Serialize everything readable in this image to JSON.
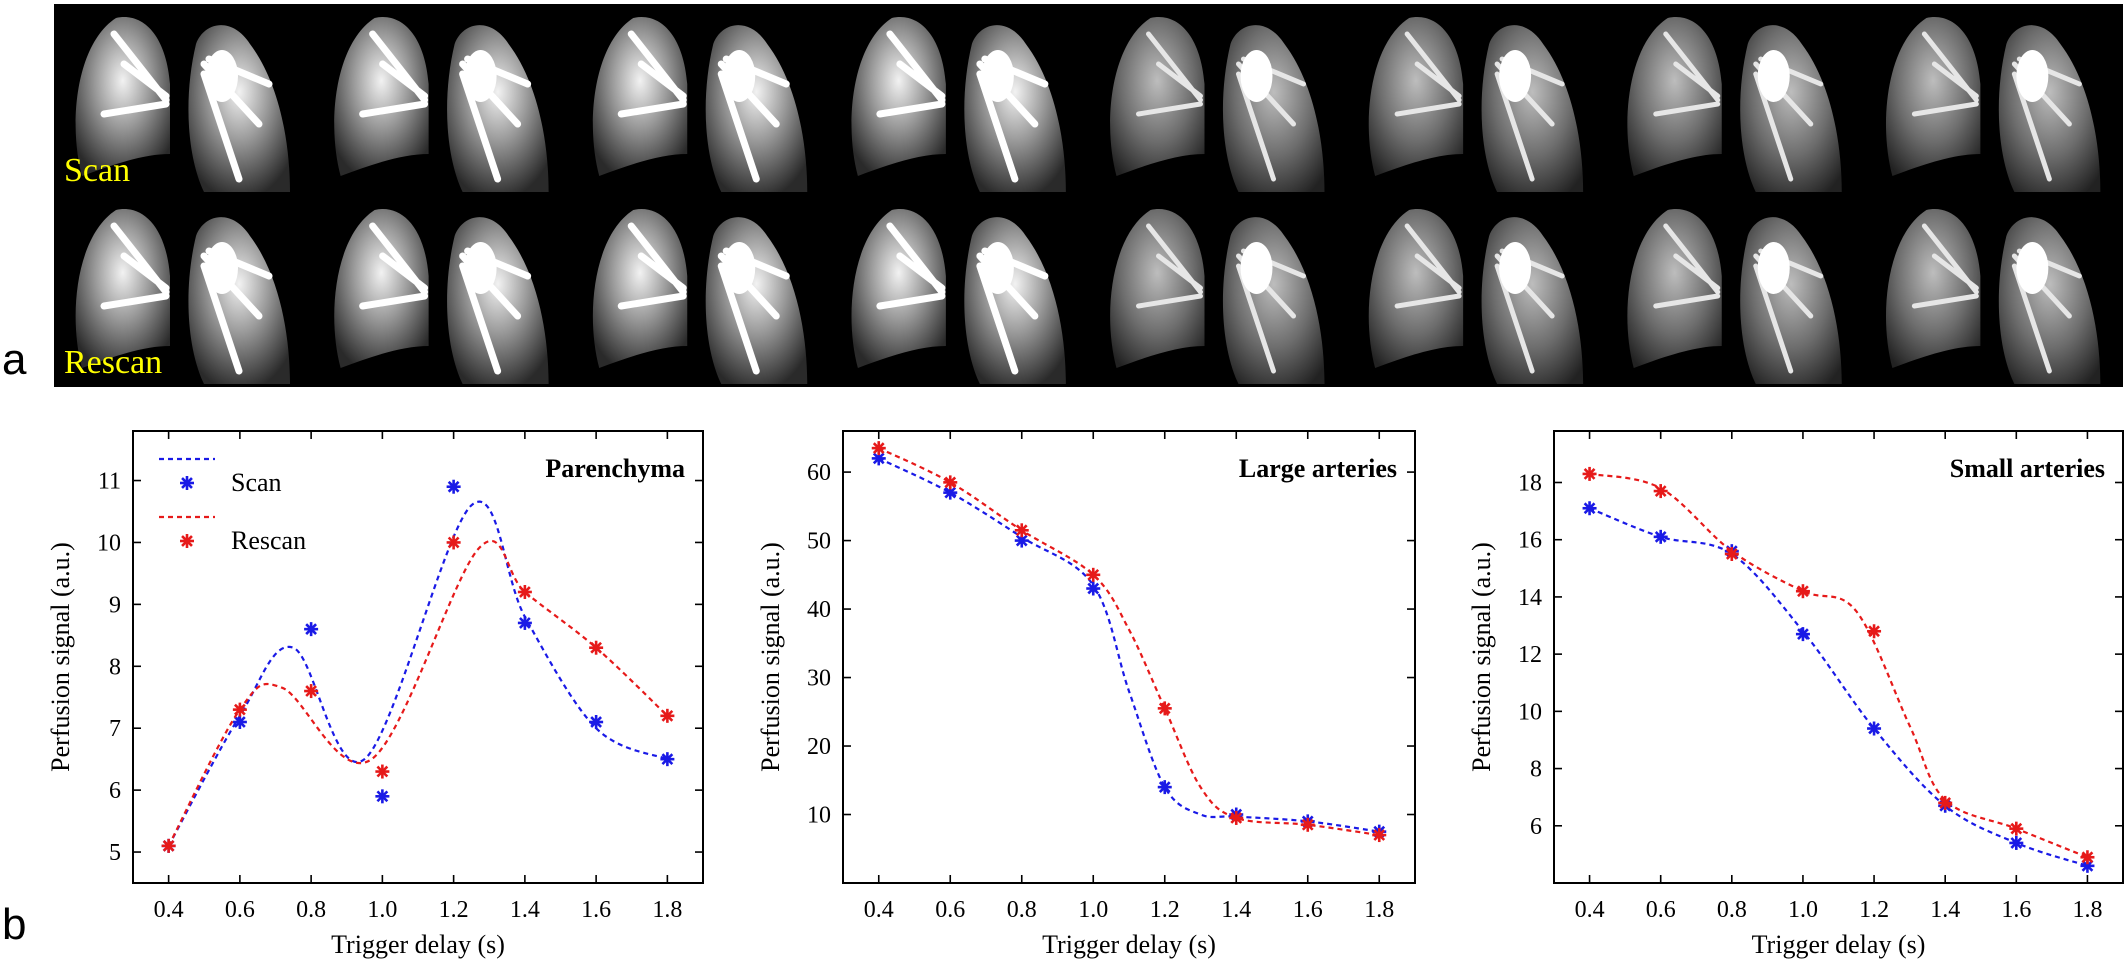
{
  "panel_labels": {
    "a": "a",
    "b": "b"
  },
  "mri": {
    "row_labels": [
      "Scan",
      "Rescan"
    ],
    "columns": 8,
    "label_color": "#ffff00"
  },
  "colors": {
    "scan": "#1a1ae6",
    "rescan": "#e61a1a"
  },
  "chart_data": [
    {
      "type": "line",
      "title": "Parenchyma",
      "xlabel": "Trigger delay (s)",
      "ylabel": "Perfusion signal (a.u.)",
      "xlim": [
        0.3,
        1.9
      ],
      "ylim": [
        4.5,
        11.8
      ],
      "xticks": [
        0.4,
        0.6,
        0.8,
        1.0,
        1.2,
        1.4,
        1.6,
        1.8
      ],
      "xtick_labels": [
        "0.4",
        "0.6",
        "0.8",
        "1.0",
        "1.2",
        "1.4",
        "1.6",
        "1.8"
      ],
      "yticks": [
        5,
        6,
        7,
        8,
        9,
        10,
        11
      ],
      "ytick_labels": [
        "5",
        "6",
        "7",
        "8",
        "9",
        "10",
        "11"
      ],
      "legend": "top-left",
      "x": [
        0.4,
        0.6,
        0.8,
        1.0,
        1.2,
        1.4,
        1.6,
        1.8
      ],
      "series": [
        {
          "name": "Scan",
          "values": [
            5.1,
            7.1,
            8.6,
            5.9,
            10.9,
            8.7,
            7.1,
            6.5
          ],
          "fit": [
            [
              0.4,
              5.1
            ],
            [
              0.6,
              7.2
            ],
            [
              0.75,
              8.3
            ],
            [
              0.95,
              6.5
            ],
            [
              1.25,
              10.6
            ],
            [
              1.4,
              8.8
            ],
            [
              1.6,
              7.0
            ],
            [
              1.8,
              6.5
            ]
          ]
        },
        {
          "name": "Rescan",
          "values": [
            5.1,
            7.3,
            7.6,
            6.3,
            10.0,
            9.2,
            8.3,
            7.2
          ],
          "fit": [
            [
              0.4,
              5.1
            ],
            [
              0.6,
              7.3
            ],
            [
              0.72,
              7.65
            ],
            [
              0.97,
              6.5
            ],
            [
              1.27,
              9.9
            ],
            [
              1.4,
              9.2
            ],
            [
              1.6,
              8.3
            ],
            [
              1.8,
              7.2
            ]
          ]
        }
      ]
    },
    {
      "type": "line",
      "title": "Large arteries",
      "xlabel": "Trigger delay (s)",
      "ylabel": "Perfusion signal (a.u.)",
      "xlim": [
        0.3,
        1.9
      ],
      "ylim": [
        0,
        66
      ],
      "xticks": [
        0.4,
        0.6,
        0.8,
        1.0,
        1.2,
        1.4,
        1.6,
        1.8
      ],
      "xtick_labels": [
        "0.4",
        "0.6",
        "0.8",
        "1.0",
        "1.2",
        "1.4",
        "1.6",
        "1.8"
      ],
      "yticks": [
        10,
        20,
        30,
        40,
        50,
        60
      ],
      "ytick_labels": [
        "10",
        "20",
        "30",
        "40",
        "50",
        "60"
      ],
      "x": [
        0.4,
        0.6,
        0.8,
        1.0,
        1.2,
        1.4,
        1.6,
        1.8
      ],
      "series": [
        {
          "name": "Scan",
          "values": [
            62,
            57,
            50,
            43,
            14,
            10,
            9,
            7.5
          ],
          "fit": [
            [
              0.4,
              62
            ],
            [
              0.6,
              57
            ],
            [
              0.8,
              50.5
            ],
            [
              1.0,
              43.5
            ],
            [
              1.1,
              28
            ],
            [
              1.2,
              14
            ],
            [
              1.3,
              10
            ],
            [
              1.4,
              9.7
            ],
            [
              1.6,
              9
            ],
            [
              1.8,
              7.5
            ]
          ]
        },
        {
          "name": "Rescan",
          "values": [
            63.5,
            58.5,
            51.5,
            45,
            25.5,
            9.5,
            8.5,
            7
          ],
          "fit": [
            [
              0.4,
              63.5
            ],
            [
              0.6,
              58.5
            ],
            [
              0.8,
              51.5
            ],
            [
              1.0,
              45
            ],
            [
              1.1,
              37
            ],
            [
              1.2,
              25.5
            ],
            [
              1.3,
              14
            ],
            [
              1.4,
              9.5
            ],
            [
              1.6,
              8.5
            ],
            [
              1.8,
              7
            ]
          ]
        }
      ]
    },
    {
      "type": "line",
      "title": "Small arteries",
      "xlabel": "Trigger delay (s)",
      "ylabel": "Perfusion signal (a.u.)",
      "xlim": [
        0.3,
        1.9
      ],
      "ylim": [
        4,
        19.8
      ],
      "xticks": [
        0.4,
        0.6,
        0.8,
        1.0,
        1.2,
        1.4,
        1.6,
        1.8
      ],
      "xtick_labels": [
        "0.4",
        "0.6",
        "0.8",
        "1.0",
        "1.2",
        "1.4",
        "1.6",
        "1.8"
      ],
      "yticks": [
        6,
        8,
        10,
        12,
        14,
        16,
        18
      ],
      "ytick_labels": [
        "6",
        "8",
        "10",
        "12",
        "14",
        "16",
        "18"
      ],
      "x": [
        0.4,
        0.6,
        0.8,
        1.0,
        1.2,
        1.4,
        1.6,
        1.8
      ],
      "series": [
        {
          "name": "Scan",
          "values": [
            17.1,
            16.1,
            15.6,
            12.7,
            9.4,
            6.7,
            5.4,
            4.6
          ],
          "fit": [
            [
              0.4,
              17.1
            ],
            [
              0.6,
              16.1
            ],
            [
              0.8,
              15.5
            ],
            [
              1.0,
              12.8
            ],
            [
              1.2,
              9.4
            ],
            [
              1.4,
              6.7
            ],
            [
              1.6,
              5.4
            ],
            [
              1.8,
              4.6
            ]
          ]
        },
        {
          "name": "Rescan",
          "values": [
            18.3,
            17.7,
            15.5,
            14.2,
            12.8,
            6.8,
            5.9,
            4.9
          ],
          "fit": [
            [
              0.4,
              18.3
            ],
            [
              0.6,
              17.8
            ],
            [
              0.8,
              15.6
            ],
            [
              1.0,
              14.2
            ],
            [
              1.15,
              13.5
            ],
            [
              1.3,
              9.5
            ],
            [
              1.4,
              6.9
            ],
            [
              1.6,
              5.9
            ],
            [
              1.8,
              4.9
            ]
          ]
        }
      ]
    }
  ]
}
